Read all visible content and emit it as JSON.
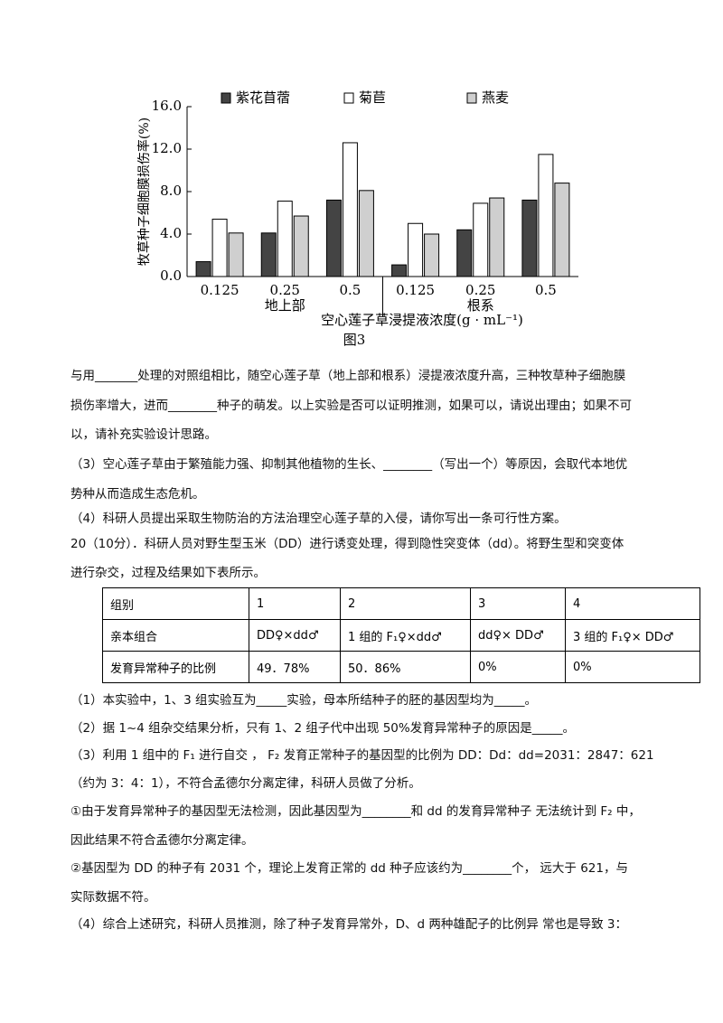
{
  "chart_data": {
    "type": "bar",
    "title": "图3",
    "x_label": "空心莲子草浸提液浓度(g · mL⁻¹)",
    "y_label": "牧草种子细胞膜损伤率(%)",
    "categories": [
      "0.125",
      "0.25",
      "0.5",
      "0.125",
      "0.25",
      "0.5"
    ],
    "groups": [
      "地上部",
      "根系"
    ],
    "series": [
      {
        "name": "紫花苜蓿",
        "color": "#444444",
        "values": [
          1.4,
          4.1,
          7.2,
          1.1,
          4.4,
          7.2
        ]
      },
      {
        "name": "菊苣",
        "color": "#ffffff",
        "values": [
          5.4,
          7.1,
          12.6,
          5.0,
          6.9,
          11.5
        ]
      },
      {
        "name": "燕麦",
        "color": "#cfcfcf",
        "values": [
          4.1,
          5.7,
          8.1,
          4.0,
          7.4,
          8.8
        ]
      }
    ],
    "ylim": [
      0,
      16
    ],
    "yticks": [
      {
        "value": 0,
        "label": "0.0"
      },
      {
        "value": 4,
        "label": "4.0"
      },
      {
        "value": 8,
        "label": "8.0"
      },
      {
        "value": 12,
        "label": "12.0"
      },
      {
        "value": 16,
        "label": "16.0"
      }
    ],
    "grid": false,
    "legend": "top"
  },
  "lines_before_table": [
    "与用_______处理的对照组相比，随空心莲子草（地上部和根系）浸提液浓度升高，三种牧草种子细胞膜",
    "损伤率增大，进而________种子的萌发。以上实验是否可以证明推测，如果可以，请说出理由；如果不可",
    "以，请补充实验设计思路。",
    "（3）空心莲子草由于繁殖能力强、抑制其他植物的生长、________（写出一个）等原因，会取代本地优",
    "势种从而造成生态危机。",
    "（4）科研人员提出采取生物防治的方法治理空心莲子草的入侵，请你写出一条可行性方案。",
    "20（10分）．科研人员对野生型玉米（DD）进行诱变处理，得到隐性突变体（dd）。将野生型和突变体",
    "进行杂交，过程及结果如下表所示。"
  ],
  "table": {
    "rows": [
      [
        "组别",
        "1",
        "2",
        "3",
        "4"
      ],
      [
        "亲本组合",
        "DD♀×dd♂",
        "1 组的 F₁♀×dd♂",
        "dd♀× DD♂",
        "3 组的 F₁♀× DD♂"
      ],
      [
        "发育异常种子的比例",
        "49．78%",
        "50．86%",
        "0%",
        "0%"
      ]
    ]
  },
  "lines_after_table": [
    "（1）本实验中，1、3 组实验互为_____实验，母本所结种子的胚的基因型均为_____。",
    "（2）据 1~4 组杂交结果分析，只有 1、2 组子代中出现 50%发育异常种子的原因是_____。",
    "（3）利用 1 组中的 F₁ 进行自交 ， F₂ 发育正常种子的基因型的比例为 DD：Dd：dd=2031：2847：621",
    "（约为 3：4：1），不符合孟德尔分离定律，科研人员做了分析。",
    "①由于发育异常种子的基因型无法检测，因此基因型为________和 dd 的发育异常种子 无法统计到 F₂ 中，",
    "因此结果不符合孟德尔分离定律。",
    "②基因型为 DD 的种子有 2031 个，理论上发育正常的 dd 种子应该约为________个， 远大于 621，与",
    "实际数据不符。",
    "（4）综合上述研究，科研人员推测，除了种子发育异常外，D、d 两种雄配子的比例异 常也是导致 3："
  ]
}
